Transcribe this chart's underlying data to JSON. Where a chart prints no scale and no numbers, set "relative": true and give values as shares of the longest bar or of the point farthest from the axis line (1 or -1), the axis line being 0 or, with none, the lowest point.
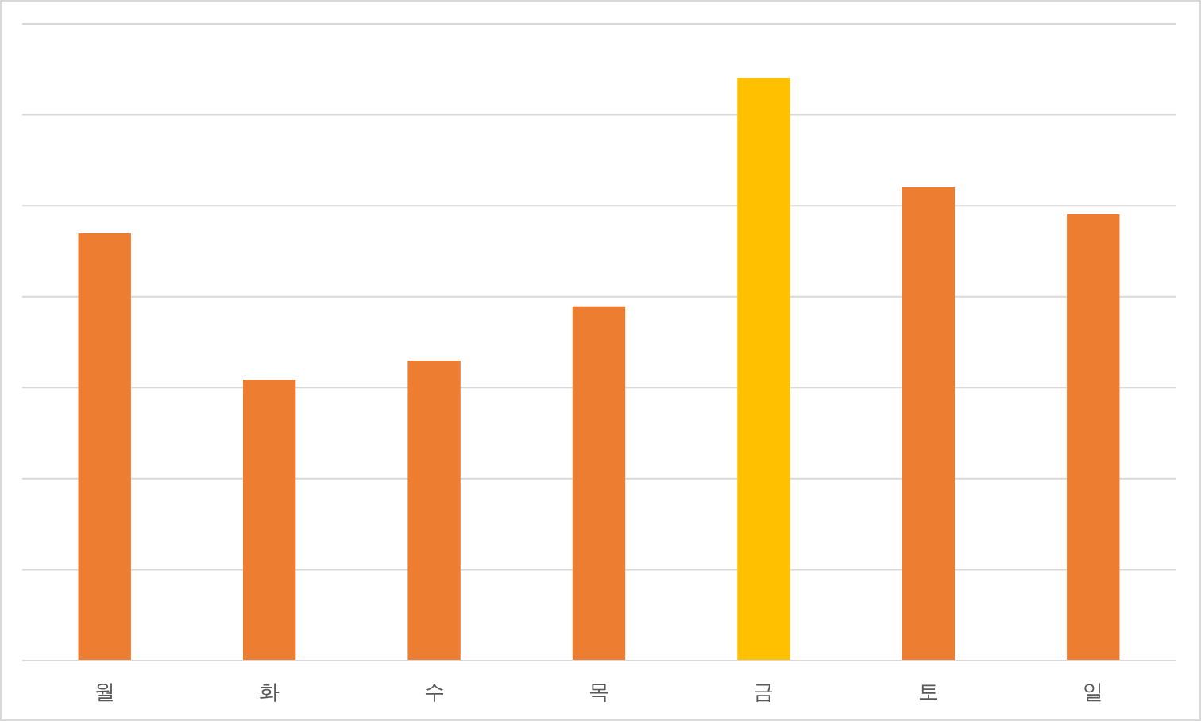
{
  "chart_data": {
    "type": "bar",
    "relative": true,
    "grid": "y",
    "categories": [
      "월",
      "화",
      "수",
      "목",
      "금",
      "토",
      "일"
    ],
    "values": [
      0.733,
      0.482,
      0.515,
      0.608,
      1,
      0.812,
      0.766
    ],
    "colors": [
      "#ed7d31",
      "#ed7d31",
      "#ed7d31",
      "#ed7d31",
      "#ffc000",
      "#ed7d31",
      "#ed7d31"
    ]
  }
}
